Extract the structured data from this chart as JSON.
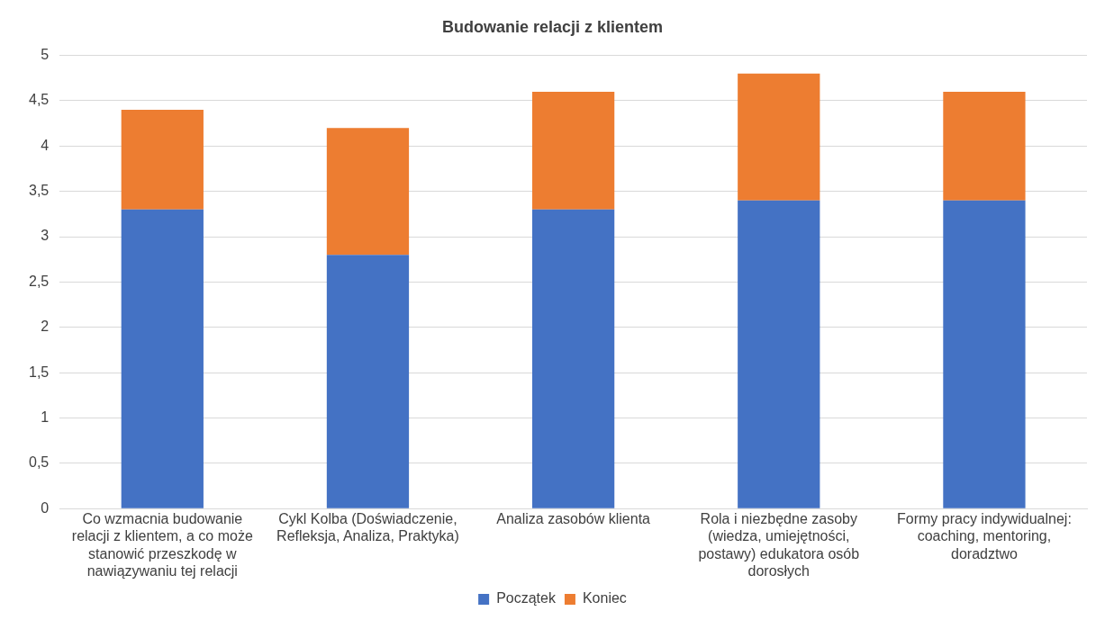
{
  "chart_data": {
    "type": "bar",
    "title": "Budowanie relacji z klientem",
    "stacked": true,
    "categories": [
      "Co wzmacnia budowanie relacji z klientem, a co może stanowić przeszkodę w nawiązywaniu tej relacji",
      "Cykl Kolba (Doświadczenie, Refleksja, Analiza, Praktyka)",
      "Analiza zasobów klienta",
      "Rola i niezbędne zasoby (wiedza, umiejętności, postawy) edukatora osób dorosłych",
      "Formy pracy indywidualnej: coaching, mentoring, doradztwo"
    ],
    "series": [
      {
        "name": "Początek",
        "color": "#4472c4",
        "values": [
          3.3,
          2.8,
          3.3,
          3.4,
          3.4
        ]
      },
      {
        "name": "Koniec",
        "color": "#ed7d31",
        "values": [
          1.1,
          1.4,
          1.3,
          1.4,
          1.2
        ]
      }
    ],
    "ylim": [
      0,
      5
    ],
    "yticks": [
      0,
      {
        "value": 0.5,
        "label": "0,5"
      },
      1,
      {
        "value": 1.5,
        "label": "1,5"
      },
      2,
      {
        "value": 2.5,
        "label": "2,5"
      },
      3,
      {
        "value": 3.5,
        "label": "3,5"
      },
      4,
      {
        "value": 4.5,
        "label": "4,5"
      },
      5
    ],
    "grid": "y",
    "legend": "bottom"
  }
}
